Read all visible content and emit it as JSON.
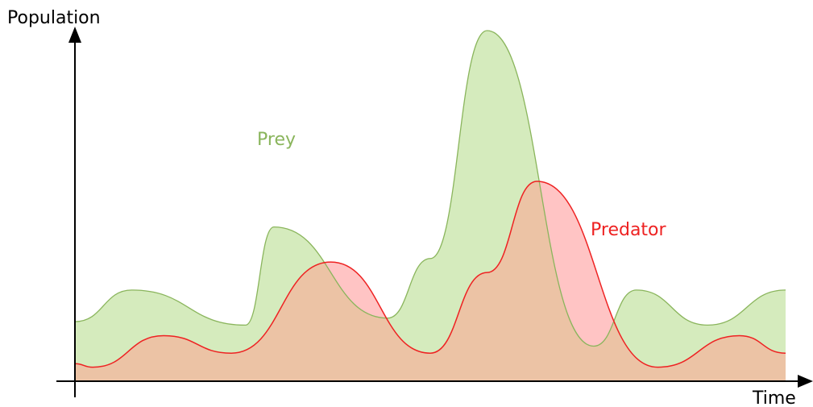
{
  "chart_data": {
    "type": "area",
    "title": "",
    "xlabel": "Time",
    "ylabel": "Population",
    "grid": false,
    "legend": "inline labels near curves",
    "series": [
      {
        "name": "Prey",
        "color": "#8ab55c",
        "fill": "#d5ebbd",
        "x": [
          0,
          8,
          24,
          28,
          44,
          50,
          58,
          73,
          79,
          89,
          100
        ],
        "values": [
          0.17,
          0.26,
          0.16,
          0.44,
          0.18,
          0.35,
          1.0,
          0.1,
          0.26,
          0.16,
          0.26
        ]
      },
      {
        "name": "Predator",
        "color": "#ee2222",
        "fill": "#ffc4c4",
        "x": [
          0,
          2.5,
          12.5,
          22,
          36,
          50,
          58,
          65,
          82,
          93.5,
          100
        ],
        "values": [
          0.05,
          0.04,
          0.13,
          0.08,
          0.34,
          0.08,
          0.31,
          0.57,
          0.04,
          0.13,
          0.08
        ]
      }
    ],
    "overlap_fill": "#ecc3a5"
  }
}
